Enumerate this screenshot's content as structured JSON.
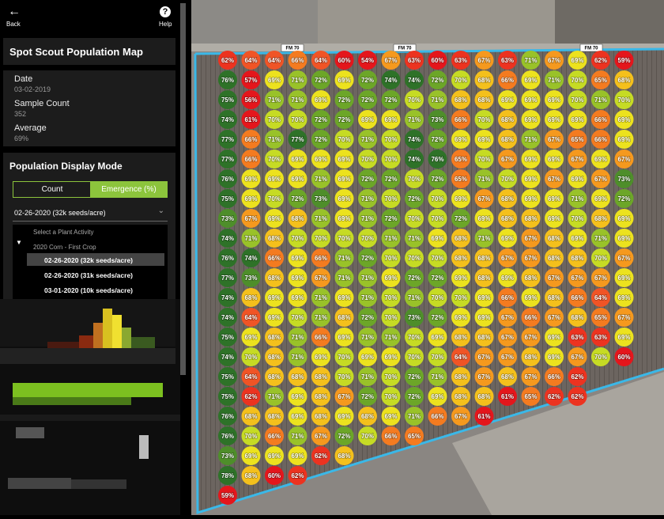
{
  "sidebar": {
    "back": "Back",
    "help": "Help",
    "title": "Spot Scout Population Map",
    "stats": [
      {
        "label": "Date",
        "value": "03-02-2019"
      },
      {
        "label": "Sample Count",
        "value": "352"
      },
      {
        "label": "Average",
        "value": "69%"
      }
    ],
    "display_mode": {
      "title": "Population Display Mode",
      "options": [
        "Count",
        "Emergence (%)"
      ],
      "selected": "02-26-2020 (32k seeds/acre)",
      "menu": {
        "placeholder": "Select a Plant Activity",
        "group": "2020 Corn - First Crop",
        "items": [
          "02-26-2020 (32k seeds/acre)",
          "02-26-2020 (31k seeds/acre)",
          "03-01-2020 (10k seeds/acre)"
        ]
      }
    }
  },
  "map": {
    "road_labels": [
      "FM 70",
      "FM 70",
      "FM 70"
    ],
    "columns": [
      [
        "62%",
        "76%",
        "75%",
        "74%",
        "77%",
        "77%",
        "76%",
        "75%",
        "73%",
        "74%",
        "76%",
        "77%",
        "74%",
        "74%",
        "75%",
        "74%",
        "75%",
        "75%",
        "76%",
        "76%",
        "73%",
        "78%",
        "59%"
      ],
      [
        "64%",
        "57%",
        "56%",
        "61%",
        "66%",
        "66%",
        "69%",
        "69%",
        "67%",
        "71%",
        "74%",
        "73%",
        "68%",
        "64%",
        "69%",
        "70%",
        "64%",
        "62%",
        "68%",
        "70%",
        "69%",
        "68%"
      ],
      [
        "64%",
        "69%",
        "71%",
        "70%",
        "71%",
        "70%",
        "69%",
        "70%",
        "69%",
        "68%",
        "66%",
        "68%",
        "69%",
        "69%",
        "68%",
        "68%",
        "68%",
        "71%",
        "68%",
        "66%",
        "69%",
        "60%"
      ],
      [
        "66%",
        "71%",
        "71%",
        "70%",
        "77%",
        "69%",
        "69%",
        "72%",
        "68%",
        "70%",
        "69%",
        "69%",
        "69%",
        "70%",
        "71%",
        "71%",
        "68%",
        "69%",
        "69%",
        "71%",
        "69%",
        "62%"
      ],
      [
        "64%",
        "72%",
        "69%",
        "72%",
        "72%",
        "69%",
        "71%",
        "73%",
        "71%",
        "70%",
        "66%",
        "67%",
        "71%",
        "71%",
        "66%",
        "69%",
        "68%",
        "68%",
        "68%",
        "67%",
        "62%"
      ],
      [
        "60%",
        "69%",
        "72%",
        "72%",
        "70%",
        "69%",
        "69%",
        "69%",
        "69%",
        "70%",
        "71%",
        "71%",
        "69%",
        "68%",
        "69%",
        "70%",
        "70%",
        "67%",
        "69%",
        "72%",
        "68%"
      ],
      [
        "54%",
        "72%",
        "72%",
        "69%",
        "71%",
        "70%",
        "72%",
        "71%",
        "71%",
        "70%",
        "72%",
        "71%",
        "71%",
        "72%",
        "71%",
        "69%",
        "71%",
        "72%",
        "68%",
        "70%"
      ],
      [
        "67%",
        "74%",
        "72%",
        "69%",
        "70%",
        "70%",
        "72%",
        "70%",
        "72%",
        "71%",
        "70%",
        "69%",
        "70%",
        "70%",
        "71%",
        "69%",
        "70%",
        "70%",
        "69%",
        "66%"
      ],
      [
        "63%",
        "74%",
        "70%",
        "71%",
        "74%",
        "74%",
        "70%",
        "72%",
        "70%",
        "71%",
        "70%",
        "72%",
        "71%",
        "73%",
        "70%",
        "70%",
        "72%",
        "72%",
        "71%",
        "65%"
      ],
      [
        "60%",
        "72%",
        "71%",
        "73%",
        "72%",
        "76%",
        "72%",
        "70%",
        "70%",
        "69%",
        "70%",
        "72%",
        "70%",
        "72%",
        "69%",
        "70%",
        "71%",
        "69%",
        "66%"
      ],
      [
        "63%",
        "70%",
        "68%",
        "66%",
        "69%",
        "65%",
        "65%",
        "69%",
        "72%",
        "68%",
        "68%",
        "69%",
        "70%",
        "69%",
        "68%",
        "64%",
        "68%",
        "68%",
        "67%"
      ],
      [
        "67%",
        "68%",
        "68%",
        "70%",
        "69%",
        "70%",
        "71%",
        "67%",
        "69%",
        "71%",
        "68%",
        "68%",
        "69%",
        "69%",
        "68%",
        "67%",
        "67%",
        "68%",
        "61%"
      ],
      [
        "63%",
        "66%",
        "69%",
        "68%",
        "68%",
        "67%",
        "70%",
        "68%",
        "68%",
        "69%",
        "67%",
        "69%",
        "66%",
        "67%",
        "67%",
        "67%",
        "68%",
        "61%"
      ],
      [
        "71%",
        "69%",
        "69%",
        "69%",
        "71%",
        "69%",
        "69%",
        "69%",
        "68%",
        "67%",
        "67%",
        "68%",
        "69%",
        "66%",
        "67%",
        "68%",
        "67%",
        "65%"
      ],
      [
        "67%",
        "71%",
        "69%",
        "69%",
        "67%",
        "69%",
        "67%",
        "69%",
        "69%",
        "68%",
        "68%",
        "67%",
        "68%",
        "67%",
        "69%",
        "69%",
        "66%",
        "62%"
      ],
      [
        "69%",
        "70%",
        "70%",
        "69%",
        "65%",
        "67%",
        "69%",
        "71%",
        "70%",
        "69%",
        "68%",
        "67%",
        "66%",
        "68%",
        "63%",
        "67%",
        "62%",
        "62%"
      ],
      [
        "62%",
        "65%",
        "71%",
        "66%",
        "66%",
        "69%",
        "67%",
        "69%",
        "68%",
        "71%",
        "70%",
        "67%",
        "64%",
        "65%",
        "63%",
        "70%"
      ],
      [
        "59%",
        "68%",
        "70%",
        "69%",
        "69%",
        "67%",
        "73%",
        "72%",
        "69%",
        "69%",
        "67%",
        "69%",
        "69%",
        "67%",
        "69%",
        "60%"
      ]
    ]
  }
}
